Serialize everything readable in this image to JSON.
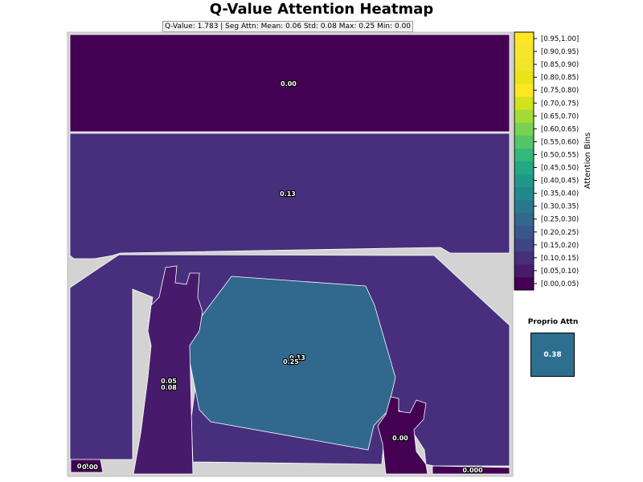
{
  "chart_data": {
    "type": "heatmap",
    "title": "Q-Value Attention Heatmap",
    "stats_text": "Q-Value: 1.783  |  Seg Attn: Mean: 0.06 Std: 0.08 Max: 0.25 Min: 0.00",
    "segments": [
      {
        "name": "top-band",
        "value": 0.0,
        "label": "0.00"
      },
      {
        "name": "upper-wall",
        "value": 0.13,
        "label": "0.13"
      },
      {
        "name": "table-surface",
        "value": 0.13,
        "label": "0.13"
      },
      {
        "name": "center-object",
        "value": 0.25,
        "label": "0.25"
      },
      {
        "name": "left-arm",
        "value": 0.05,
        "label": "0.05"
      },
      {
        "name": "left-arm-lower",
        "value": 0.08,
        "label": "0.08"
      },
      {
        "name": "right-gripper",
        "value": 0.0,
        "label": "0.00"
      },
      {
        "name": "bottom-left-a",
        "value": 0.0,
        "label": "0.0"
      },
      {
        "name": "bottom-left-b",
        "value": 0.0,
        "label": "0.00"
      },
      {
        "name": "bottom-right",
        "value": 0.0,
        "label": "0.000"
      }
    ],
    "colorbar": {
      "label": "Attention Bins",
      "bins": [
        "[0.00,0.05)",
        "[0.05,0.10)",
        "[0.10,0.15)",
        "[0.15,0.20)",
        "[0.20,0.25)",
        "[0.25,0.30)",
        "[0.30,0.35)",
        "[0.35,0.40)",
        "[0.40,0.45)",
        "[0.45,0.50)",
        "[0.50,0.55)",
        "[0.55,0.60)",
        "[0.60,0.65)",
        "[0.65,0.70)",
        "[0.70,0.75)",
        "[0.75,0.80)",
        "[0.80,0.85)",
        "[0.85,0.90)",
        "[0.90,0.95)",
        "[0.95,1.00]"
      ],
      "colors": [
        "#440154",
        "#481a6c",
        "#472f7d",
        "#414487",
        "#39568c",
        "#31688e",
        "#2a788e",
        "#23888e",
        "#1f988b",
        "#22a884",
        "#35b779",
        "#54c568",
        "#7ad151",
        "#a5db36",
        "#d2e21b",
        "#fde725",
        "#e7e419",
        "#f0e52a",
        "#f6e62b",
        "#fde725"
      ]
    },
    "proprio": {
      "title": "Proprio Attn",
      "value": 0.38,
      "label": "0.38"
    }
  }
}
